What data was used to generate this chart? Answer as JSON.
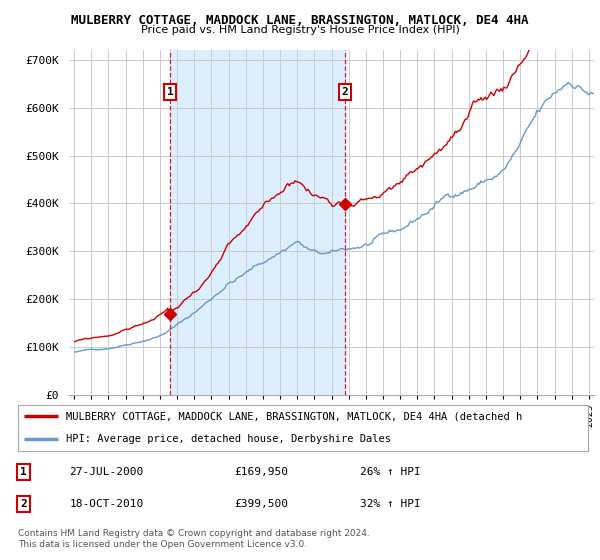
{
  "title": "MULBERRY COTTAGE, MADDOCK LANE, BRASSINGTON, MATLOCK, DE4 4HA",
  "subtitle": "Price paid vs. HM Land Registry's House Price Index (HPI)",
  "ylabel_ticks": [
    "£0",
    "£100K",
    "£200K",
    "£300K",
    "£400K",
    "£500K",
    "£600K",
    "£700K"
  ],
  "ytick_vals": [
    0,
    100000,
    200000,
    300000,
    400000,
    500000,
    600000,
    700000
  ],
  "ylim": [
    0,
    720000
  ],
  "sale1_x": 2000.58,
  "sale1_price": 169950,
  "sale1_hpi_pct": "26%",
  "sale1_date": "27-JUL-2000",
  "sale2_x": 2010.79,
  "sale2_price": 399500,
  "sale2_hpi_pct": "32%",
  "sale2_date": "18-OCT-2010",
  "legend_label1": "MULBERRY COTTAGE, MADDOCK LANE, BRASSINGTON, MATLOCK, DE4 4HA (detached h",
  "legend_label2": "HPI: Average price, detached house, Derbyshire Dales",
  "footer": "Contains HM Land Registry data © Crown copyright and database right 2024.\nThis data is licensed under the Open Government Licence v3.0.",
  "line_color_property": "#cc0000",
  "line_color_hpi": "#6699cc",
  "shade_color": "#ddeeff",
  "bg_color": "#ffffff",
  "plot_bg_color": "#ffffff",
  "grid_color": "#cccccc",
  "annotation_color": "#cc0000",
  "xstart": 1995,
  "xend": 2025
}
